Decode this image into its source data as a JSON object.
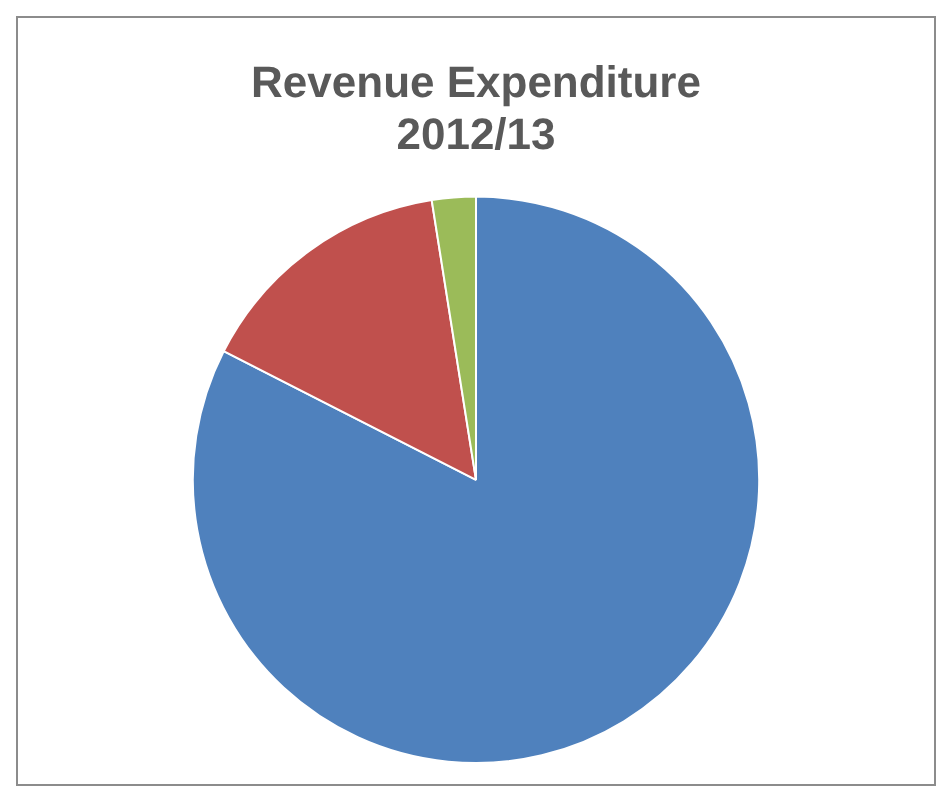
{
  "chart_data": {
    "type": "pie",
    "title": "Revenue Expenditure\n2012/13",
    "categories": [
      null,
      null,
      null
    ],
    "values": [
      82.5,
      15,
      2.5
    ],
    "colors": [
      "#4f81bd",
      "#c0504d",
      "#9bbb59"
    ],
    "legend": false
  }
}
